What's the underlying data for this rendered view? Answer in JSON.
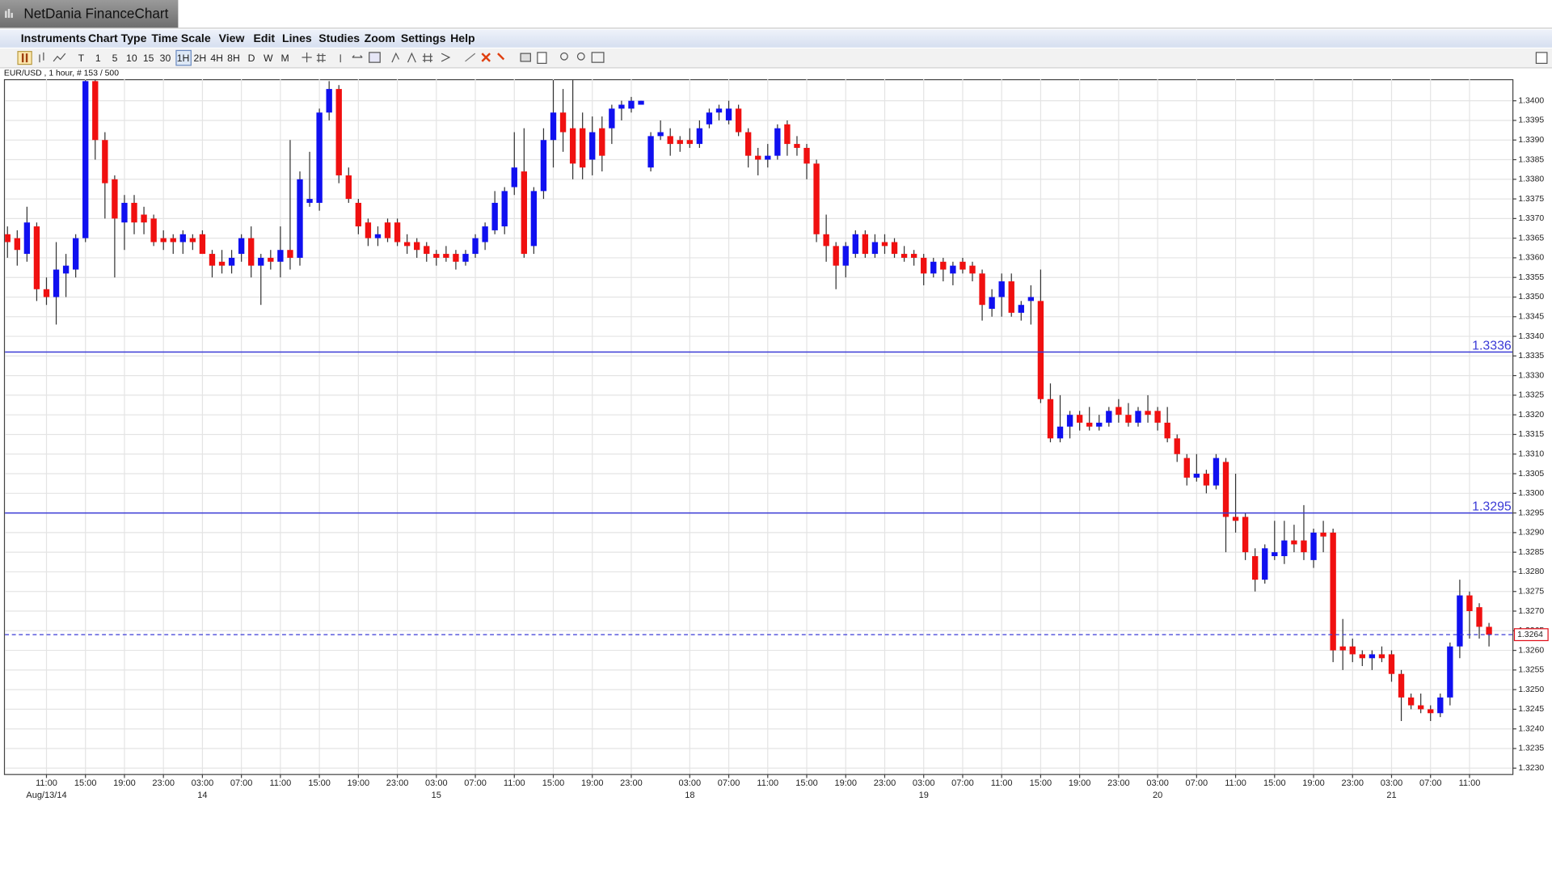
{
  "ui": {
    "window_title": "NetDania FinanceChart",
    "menu": [
      "Instruments",
      "Chart Type",
      "Time Scale",
      "View",
      "Edit",
      "Lines",
      "Studies",
      "Zoom",
      "Settings",
      "Help"
    ],
    "timeframes": [
      "T",
      "1",
      "5",
      "10",
      "15",
      "30",
      "1H",
      "2H",
      "4H",
      "8H",
      "D",
      "W",
      "M"
    ]
  },
  "chart_data": {
    "type": "candlestick",
    "subtitle": "EUR/USD , 1 hour, # 153 / 500",
    "xlim": [
      -0.26,
      154.4
    ],
    "ylim": [
      1.32285,
      1.34055
    ],
    "yticks": [
      {
        "value": 1.323,
        "label": "1.3230"
      },
      1.3235,
      {
        "value": 1.324,
        "label": "1.3240"
      },
      1.3245,
      {
        "value": 1.325,
        "label": "1.3250"
      },
      1.3255,
      {
        "value": 1.326,
        "label": "1.3260"
      },
      1.3265,
      {
        "value": 1.327,
        "label": "1.3270"
      },
      1.3275,
      {
        "value": 1.328,
        "label": "1.3280"
      },
      1.3285,
      {
        "value": 1.329,
        "label": "1.3290"
      },
      1.3295,
      {
        "value": 1.33,
        "label": "1.3300"
      },
      1.3305,
      {
        "value": 1.331,
        "label": "1.3310"
      },
      1.3315,
      {
        "value": 1.332,
        "label": "1.3320"
      },
      1.3325,
      {
        "value": 1.333,
        "label": "1.3330"
      },
      1.3335,
      {
        "value": 1.334,
        "label": "1.3340"
      },
      1.3345,
      {
        "value": 1.335,
        "label": "1.3350"
      },
      1.3355,
      {
        "value": 1.336,
        "label": "1.3360"
      },
      1.3365,
      {
        "value": 1.337,
        "label": "1.3370"
      },
      1.3375,
      {
        "value": 1.338,
        "label": "1.3380"
      },
      1.3385,
      {
        "value": 1.339,
        "label": "1.3390"
      },
      1.3395,
      {
        "value": 1.34,
        "label": "1.3400"
      }
    ],
    "xticks": [
      {
        "value": 4,
        "label": "11:00"
      },
      {
        "value": 8,
        "label": "15:00"
      },
      {
        "value": 12,
        "label": "19:00"
      },
      {
        "value": 16,
        "label": "23:00"
      },
      {
        "value": 20,
        "label": "03:00"
      },
      {
        "value": 24,
        "label": "07:00"
      },
      {
        "value": 28,
        "label": "11:00"
      },
      {
        "value": 32,
        "label": "15:00"
      },
      {
        "value": 36,
        "label": "19:00"
      },
      {
        "value": 40,
        "label": "23:00"
      },
      {
        "value": 44,
        "label": "03:00"
      },
      {
        "value": 48,
        "label": "07:00"
      },
      {
        "value": 52,
        "label": "11:00"
      },
      {
        "value": 56,
        "label": "15:00"
      },
      {
        "value": 60,
        "label": "19:00"
      },
      {
        "value": 64,
        "label": "23:00"
      },
      {
        "value": 70,
        "label": "03:00"
      },
      {
        "value": 74,
        "label": "07:00"
      },
      {
        "value": 78,
        "label": "11:00"
      },
      {
        "value": 82,
        "label": "15:00"
      },
      {
        "value": 86,
        "label": "19:00"
      },
      {
        "value": 90,
        "label": "23:00"
      },
      {
        "value": 94,
        "label": "03:00"
      },
      {
        "value": 98,
        "label": "07:00"
      },
      {
        "value": 102,
        "label": "11:00"
      },
      {
        "value": 106,
        "label": "15:00"
      },
      {
        "value": 110,
        "label": "19:00"
      },
      {
        "value": 114,
        "label": "23:00"
      },
      {
        "value": 118,
        "label": "03:00"
      },
      {
        "value": 122,
        "label": "07:00"
      },
      {
        "value": 126,
        "label": "11:00"
      },
      {
        "value": 130,
        "label": "15:00"
      },
      {
        "value": 134,
        "label": "19:00"
      },
      {
        "value": 138,
        "label": "23:00"
      },
      {
        "value": 142,
        "label": "03:00"
      },
      {
        "value": 146,
        "label": "07:00"
      },
      {
        "value": 150,
        "label": "11:00"
      }
    ],
    "date_ticks": [
      {
        "value": 4,
        "label": "Aug/13/14"
      },
      {
        "value": 20,
        "label": "14"
      },
      {
        "value": 44,
        "label": "15"
      },
      {
        "value": 70,
        "label": "18"
      },
      {
        "value": 94,
        "label": "19"
      },
      {
        "value": 118,
        "label": "20"
      },
      {
        "value": 142,
        "label": "21"
      }
    ],
    "grid": true,
    "levels": [
      1.3336,
      1.3295
    ],
    "level_color": "#3a3ad6",
    "last_price": 1.3264,
    "last_price_color": "#e0101a",
    "series": [
      {
        "up_color": "#1010f0",
        "down_color": "#f01010",
        "wick_color": "#333333",
        "open": [
          1.3366,
          1.3365,
          1.3361,
          1.3368,
          1.3352,
          1.335,
          1.3356,
          1.3357,
          1.3365,
          1.3405,
          1.339,
          1.338,
          1.3369,
          1.3374,
          1.3371,
          1.337,
          1.3365,
          1.3365,
          1.3364,
          1.3365,
          1.3366,
          1.3361,
          1.3359,
          1.3358,
          1.3361,
          1.3365,
          1.3358,
          1.336,
          1.3359,
          1.3362,
          1.336,
          1.3374,
          1.3374,
          1.3397,
          1.3403,
          1.3381,
          1.3374,
          1.3369,
          1.3365,
          1.3369,
          1.3369,
          1.3364,
          1.3364,
          1.3363,
          1.3361,
          1.3361,
          1.3361,
          1.3359,
          1.3361,
          1.3364,
          1.3367,
          1.3368,
          1.3378,
          1.3382,
          1.3363,
          1.3377,
          1.339,
          1.3397,
          1.3393,
          1.3393,
          1.3385,
          1.3393,
          1.3393,
          1.3398,
          1.3398,
          1.3399,
          1.3383,
          1.3391,
          1.3391,
          1.339,
          1.339,
          1.3389,
          1.3394,
          1.3397,
          1.3395,
          1.3398,
          1.3392,
          1.3386,
          1.3385,
          1.3386,
          1.3394,
          1.3389,
          1.3388,
          1.3384,
          1.3366,
          1.3363,
          1.3358,
          1.3361,
          1.3366,
          1.3361,
          1.3364,
          1.3364,
          1.3361,
          1.3361,
          1.336,
          1.3356,
          1.3359,
          1.3356,
          1.3359,
          1.3358,
          1.3356,
          1.3347,
          1.335,
          1.3354,
          1.3346,
          1.3349,
          1.3349,
          1.3324,
          1.3314,
          1.3317,
          1.332,
          1.3318,
          1.3317,
          1.3318,
          1.3322,
          1.332,
          1.3318,
          1.3321,
          1.3321,
          1.3318,
          1.3314,
          1.3309,
          1.3304,
          1.3305,
          1.3302,
          1.3308,
          1.3294,
          1.3294,
          1.3284,
          1.3278,
          1.3284,
          1.3284,
          1.3288,
          1.3288,
          1.3283,
          1.329,
          1.329,
          1.3261,
          1.3261,
          1.3259,
          1.3258,
          1.3259,
          1.3259,
          1.3254,
          1.3248,
          1.3246,
          1.3245,
          1.3244,
          1.3248,
          1.3261,
          1.3274,
          1.3271,
          1.3266
        ],
        "high": [
          1.3368,
          1.3367,
          1.3373,
          1.3369,
          1.3355,
          1.3364,
          1.3361,
          1.3366,
          1.3406,
          1.3406,
          1.3392,
          1.3381,
          1.3376,
          1.3376,
          1.3373,
          1.3371,
          1.3367,
          1.3366,
          1.3367,
          1.3366,
          1.3367,
          1.3362,
          1.3362,
          1.3362,
          1.3366,
          1.3368,
          1.3361,
          1.3362,
          1.3368,
          1.339,
          1.3382,
          1.3387,
          1.3398,
          1.3405,
          1.3404,
          1.3383,
          1.3375,
          1.337,
          1.3368,
          1.337,
          1.337,
          1.3366,
          1.3365,
          1.3364,
          1.3362,
          1.3363,
          1.3362,
          1.3362,
          1.3366,
          1.3369,
          1.3377,
          1.3378,
          1.3392,
          1.3393,
          1.3378,
          1.3393,
          1.3406,
          1.3403,
          1.3406,
          1.3397,
          1.3396,
          1.3396,
          1.3399,
          1.34,
          1.3401,
          1.34,
          1.3392,
          1.3395,
          1.3393,
          1.3391,
          1.3393,
          1.3395,
          1.3398,
          1.3399,
          1.34,
          1.3399,
          1.3393,
          1.3388,
          1.3389,
          1.3394,
          1.3395,
          1.3391,
          1.3389,
          1.3385,
          1.3371,
          1.3364,
          1.3364,
          1.3367,
          1.3367,
          1.3366,
          1.3366,
          1.3365,
          1.3363,
          1.3362,
          1.3361,
          1.336,
          1.336,
          1.3359,
          1.336,
          1.3359,
          1.3357,
          1.3352,
          1.3356,
          1.3356,
          1.3349,
          1.3353,
          1.3357,
          1.3328,
          1.3325,
          1.3321,
          1.3321,
          1.3322,
          1.332,
          1.3322,
          1.3324,
          1.3323,
          1.3322,
          1.3325,
          1.3322,
          1.3322,
          1.3315,
          1.331,
          1.331,
          1.3306,
          1.331,
          1.3309,
          1.3305,
          1.3295,
          1.3286,
          1.3287,
          1.3293,
          1.3293,
          1.3292,
          1.3297,
          1.3291,
          1.3293,
          1.3291,
          1.3268,
          1.3263,
          1.326,
          1.326,
          1.3261,
          1.326,
          1.3255,
          1.3249,
          1.3249,
          1.3246,
          1.3249,
          1.3262,
          1.3278,
          1.3275,
          1.3272,
          1.3267
        ],
        "low": [
          1.336,
          1.3358,
          1.3359,
          1.3349,
          1.3348,
          1.3343,
          1.335,
          1.3355,
          1.3364,
          1.3385,
          1.337,
          1.3355,
          1.3362,
          1.3366,
          1.3366,
          1.3363,
          1.3362,
          1.3361,
          1.3361,
          1.3362,
          1.3361,
          1.3355,
          1.3356,
          1.3356,
          1.3359,
          1.3355,
          1.3348,
          1.3357,
          1.3355,
          1.3357,
          1.3358,
          1.3373,
          1.3372,
          1.3395,
          1.3379,
          1.3374,
          1.3366,
          1.3363,
          1.3363,
          1.3364,
          1.3363,
          1.3361,
          1.336,
          1.3359,
          1.3358,
          1.3359,
          1.3357,
          1.3358,
          1.336,
          1.3362,
          1.3366,
          1.3366,
          1.3376,
          1.336,
          1.3361,
          1.3375,
          1.3383,
          1.3387,
          1.338,
          1.338,
          1.3381,
          1.3382,
          1.3389,
          1.3395,
          1.3397,
          1.3399,
          1.3382,
          1.339,
          1.3386,
          1.3387,
          1.3388,
          1.3388,
          1.3393,
          1.3395,
          1.3394,
          1.3391,
          1.3383,
          1.3381,
          1.3383,
          1.3385,
          1.3386,
          1.3386,
          1.338,
          1.3364,
          1.3359,
          1.3352,
          1.3355,
          1.336,
          1.336,
          1.336,
          1.3361,
          1.336,
          1.3359,
          1.3358,
          1.3353,
          1.3355,
          1.3354,
          1.3353,
          1.3356,
          1.3354,
          1.3344,
          1.3345,
          1.3345,
          1.3345,
          1.3344,
          1.3343,
          1.3323,
          1.3313,
          1.3313,
          1.3314,
          1.3316,
          1.3316,
          1.3316,
          1.3317,
          1.3318,
          1.3317,
          1.3317,
          1.3318,
          1.3316,
          1.3313,
          1.3308,
          1.3302,
          1.3303,
          1.33,
          1.3301,
          1.3285,
          1.329,
          1.3283,
          1.3275,
          1.3277,
          1.3283,
          1.3282,
          1.3285,
          1.3283,
          1.3281,
          1.3285,
          1.3257,
          1.3255,
          1.3257,
          1.3256,
          1.3255,
          1.3257,
          1.3252,
          1.3242,
          1.3245,
          1.3244,
          1.3242,
          1.3243,
          1.3246,
          1.3258,
          1.3263,
          1.3263,
          1.3261
        ],
        "close": [
          1.3364,
          1.3362,
          1.3369,
          1.3352,
          1.335,
          1.3357,
          1.3358,
          1.3365,
          1.3405,
          1.339,
          1.3379,
          1.337,
          1.3374,
          1.3369,
          1.3369,
          1.3364,
          1.3364,
          1.3364,
          1.3366,
          1.3364,
          1.3361,
          1.3358,
          1.3358,
          1.336,
          1.3365,
          1.3358,
          1.336,
          1.3359,
          1.3362,
          1.336,
          1.338,
          1.3375,
          1.3397,
          1.3403,
          1.3381,
          1.3375,
          1.3368,
          1.3365,
          1.3366,
          1.3365,
          1.3364,
          1.3363,
          1.3362,
          1.3361,
          1.336,
          1.336,
          1.3359,
          1.3361,
          1.3365,
          1.3368,
          1.3374,
          1.3377,
          1.3383,
          1.3361,
          1.3377,
          1.339,
          1.3397,
          1.3392,
          1.3384,
          1.3383,
          1.3392,
          1.3386,
          1.3398,
          1.3399,
          1.34,
          1.34,
          1.3391,
          1.3392,
          1.3389,
          1.3389,
          1.3389,
          1.3393,
          1.3397,
          1.3398,
          1.3398,
          1.3392,
          1.3386,
          1.3385,
          1.3386,
          1.3393,
          1.3389,
          1.3388,
          1.3384,
          1.3366,
          1.3363,
          1.3358,
          1.3363,
          1.3366,
          1.3361,
          1.3364,
          1.3363,
          1.3361,
          1.336,
          1.336,
          1.3356,
          1.3359,
          1.3357,
          1.3358,
          1.3357,
          1.3356,
          1.3348,
          1.335,
          1.3354,
          1.3346,
          1.3348,
          1.335,
          1.3324,
          1.3314,
          1.3317,
          1.332,
          1.3318,
          1.3317,
          1.3318,
          1.3321,
          1.332,
          1.3318,
          1.3321,
          1.332,
          1.3318,
          1.3314,
          1.331,
          1.3304,
          1.3305,
          1.3302,
          1.3309,
          1.3294,
          1.3293,
          1.3285,
          1.3278,
          1.3286,
          1.3285,
          1.3288,
          1.3287,
          1.3285,
          1.329,
          1.3289,
          1.326,
          1.326,
          1.3259,
          1.3258,
          1.3259,
          1.3258,
          1.3254,
          1.3248,
          1.3246,
          1.3245,
          1.3244,
          1.3248,
          1.3261,
          1.3274,
          1.327,
          1.3266,
          1.3264
        ]
      }
    ]
  }
}
